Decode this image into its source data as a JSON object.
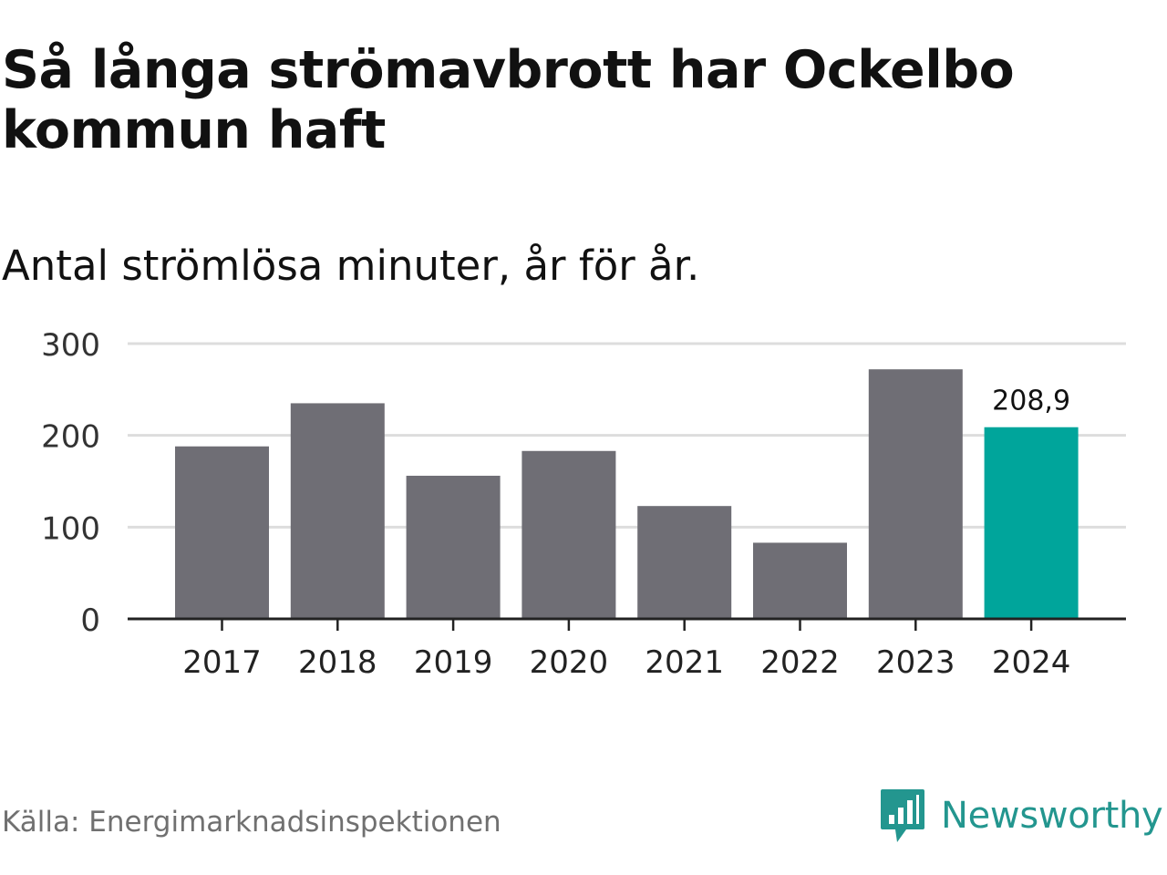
{
  "header": {
    "title": "Så långa strömavbrott har Ockelbo kommun haft",
    "subtitle": "Antal strömlösa minuter, år för år."
  },
  "footer": {
    "source": "Källa: Energimarknadsinspektionen",
    "brand": "Newsworthy",
    "brand_icon": "newsworthy-logo-icon"
  },
  "colors": {
    "bar": "#6f6e75",
    "highlight": "#00a59b",
    "grid": "#dddddd",
    "axis": "#222222",
    "brand": "#23968f"
  },
  "chart_data": {
    "type": "bar",
    "title": "Så långa strömavbrott har Ockelbo kommun haft",
    "subtitle": "Antal strömlösa minuter, år för år.",
    "xlabel": "",
    "ylabel": "",
    "categories": [
      "2017",
      "2018",
      "2019",
      "2020",
      "2021",
      "2022",
      "2023",
      "2024"
    ],
    "values": [
      188,
      235,
      156,
      183,
      123,
      83,
      272,
      208.9
    ],
    "highlight_index": 7,
    "data_labels": [
      {
        "index": 7,
        "text": "208,9"
      }
    ],
    "ylim": [
      0,
      300
    ],
    "yticks": [
      0,
      100,
      200,
      300
    ],
    "ytick_labels": [
      "0",
      "100",
      "200",
      "300"
    ],
    "grid": true,
    "legend": "none"
  }
}
